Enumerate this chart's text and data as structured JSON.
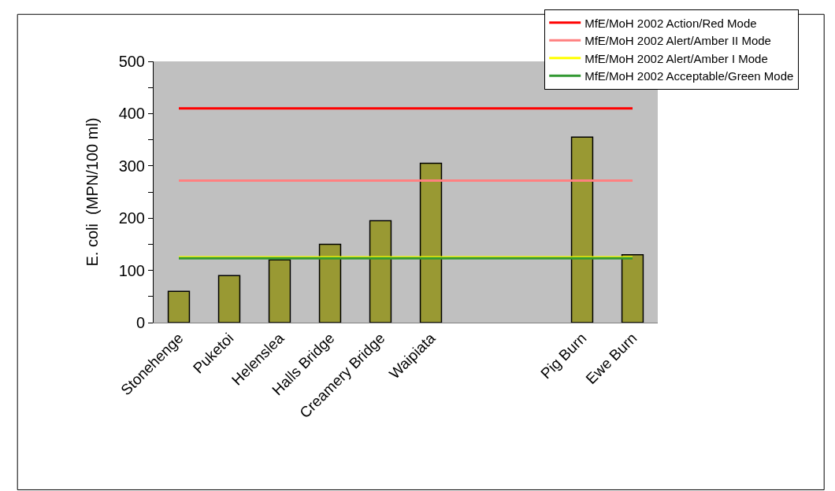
{
  "chart_data": {
    "type": "bar",
    "ylabel": "E. coli  (MPN/100 ml)",
    "categories": [
      "Stonehenge",
      "Puketoi",
      "Helenslea",
      "Halls Bridge",
      "Creamery Bridge",
      "Waipiata",
      null,
      null,
      "Pig Burn",
      "Ewe Burn"
    ],
    "values": [
      60,
      90,
      120,
      150,
      195,
      305,
      null,
      null,
      355,
      130
    ],
    "color": "#999933",
    "ylim": [
      0,
      500
    ],
    "yticks": [
      0,
      {
        "value": 50,
        "label": null
      },
      100,
      {
        "value": 150,
        "label": null
      },
      200,
      {
        "value": 250,
        "label": null
      },
      300,
      {
        "value": 350,
        "label": null
      },
      400,
      {
        "value": 450,
        "label": null
      },
      500
    ],
    "ref_lines": [
      {
        "axis": "y",
        "value": 410,
        "label": "MfE/MoH 2002 Action/Red Mode",
        "color": "#ff0000"
      },
      {
        "axis": "y",
        "value": 272,
        "label": "MfE/MoH 2002 Alert/Amber II Mode",
        "color": "#ff8080"
      },
      {
        "axis": "y",
        "value": 125,
        "label": "MfE/MoH 2002 Alert/Amber I Mode",
        "color": "#ffff00"
      },
      {
        "axis": "y",
        "value": 123,
        "label": "MfE/MoH 2002 Acceptable/Green Mode",
        "color": "#339933"
      }
    ],
    "legend": "top right",
    "grid": false
  }
}
